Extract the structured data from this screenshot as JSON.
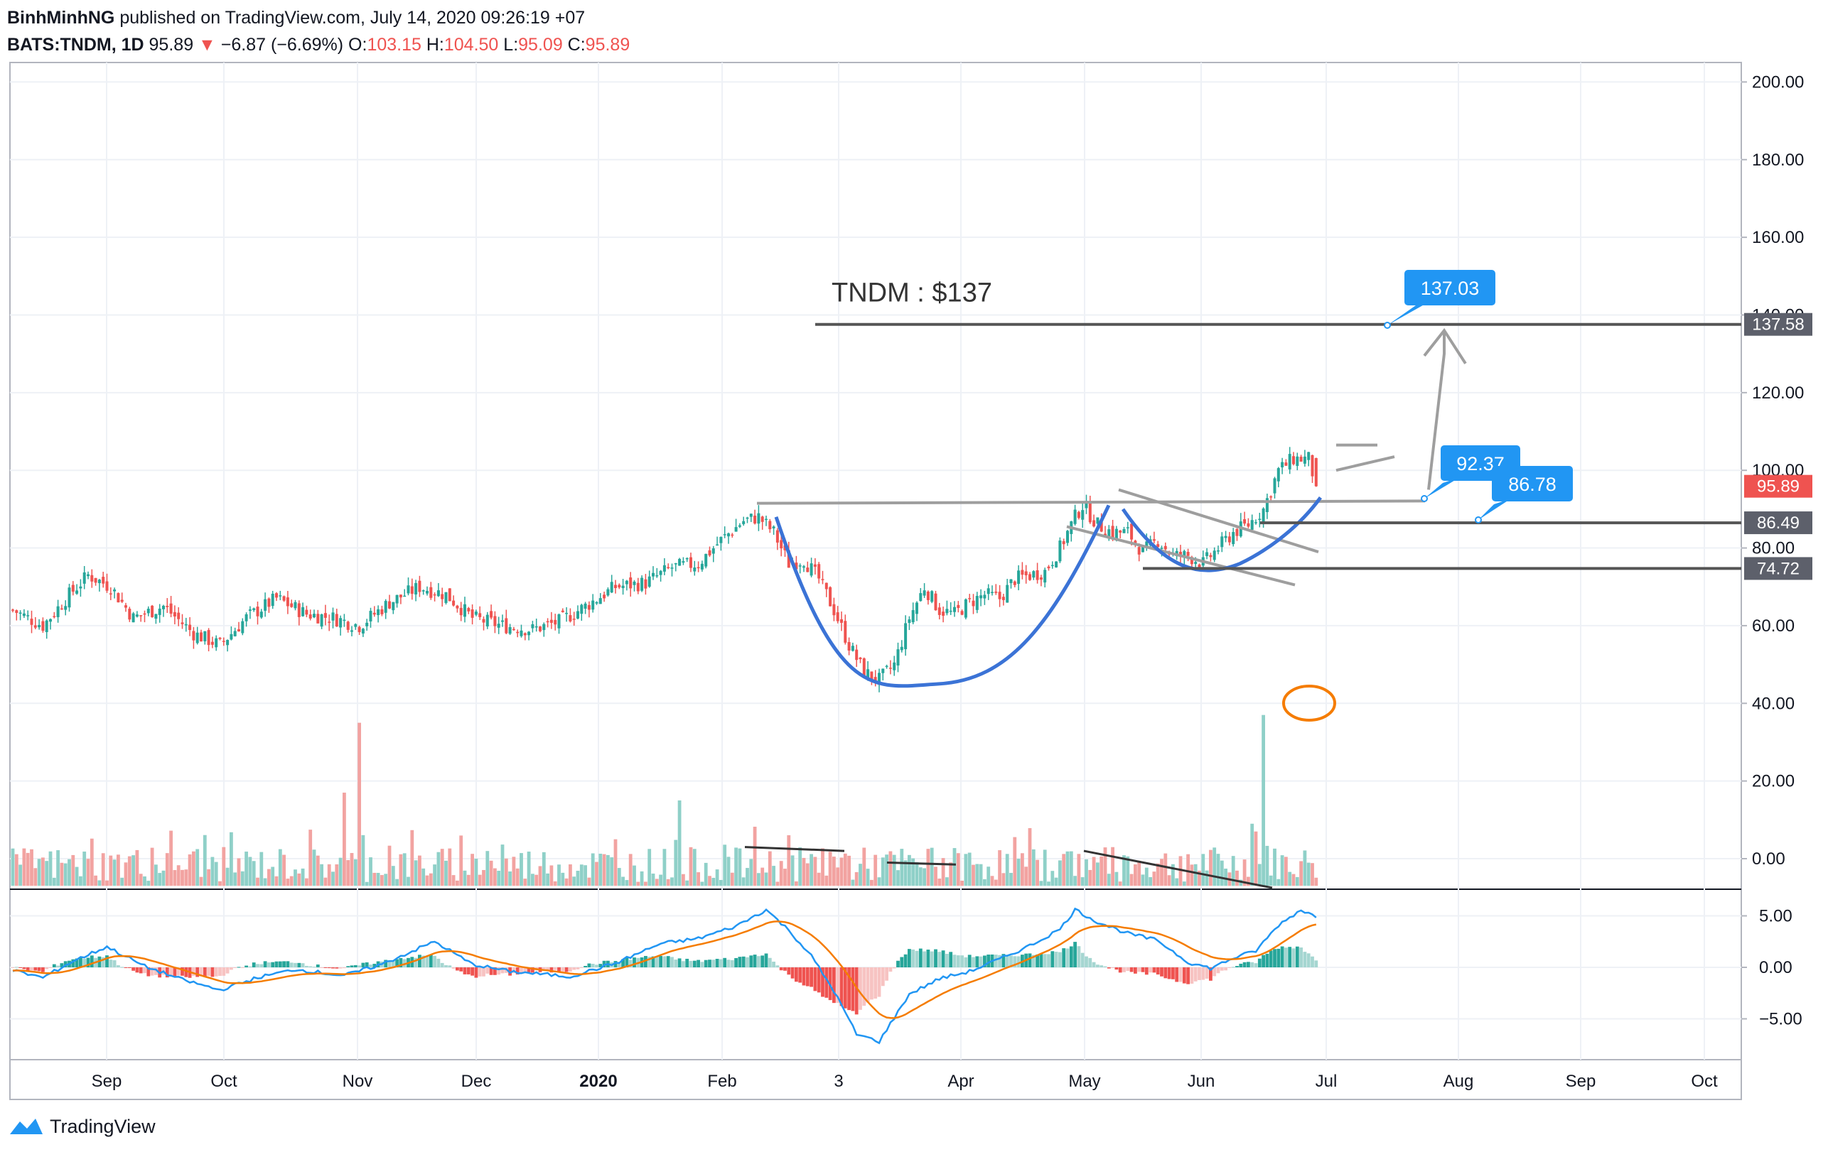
{
  "header": {
    "author": "BinhMinhNG",
    "published_text": "published on TradingView.com, July 14, 2020 09:26:19 +07",
    "symbol": "BATS:TNDM, 1D",
    "last": "95.89",
    "arrow": "▼",
    "change": "−6.87 (−6.69%)",
    "o_label": "O:",
    "o": "103.15",
    "h_label": "H:",
    "h": "104.50",
    "l_label": "L:",
    "l": "95.09",
    "c_label": "C:",
    "c": "95.89"
  },
  "footer": {
    "brand": "TradingView"
  },
  "colors": {
    "up": "#26a69a",
    "down": "#ef5350",
    "vol_up": "#8fd0c8",
    "vol_down": "#f2a3a1",
    "macd": "#2196f3",
    "signal": "#f57c00",
    "trendline": "#9e9e9e",
    "level": "#555555",
    "callout": "#2196f3",
    "cup": "#3b73d6",
    "circle": "#f57c00"
  },
  "chart_data": {
    "type": "candlestick",
    "symbol": "BATS:TNDM",
    "interval": "1D",
    "x_labels": [
      "Sep",
      "Oct",
      "Nov",
      "Dec",
      "2020",
      "Feb",
      "3",
      "Apr",
      "May",
      "Jun",
      "Jul",
      "Aug",
      "Sep",
      "Oct"
    ],
    "price_axis_ticks": [
      "200.00",
      "180.00",
      "160.00",
      "140.00",
      "120.00",
      "100.00",
      "80.00",
      "60.00",
      "40.00",
      "20.00",
      "0.00"
    ],
    "macd_axis_ticks": [
      "5.00",
      "0.00",
      "−5.00"
    ],
    "price_ylim": [
      -7,
      205
    ],
    "macd_ylim": [
      -8,
      7.2
    ],
    "price_anchors": [
      [
        0,
        64
      ],
      [
        8,
        60
      ],
      [
        15,
        68
      ],
      [
        20,
        73
      ],
      [
        26,
        70
      ],
      [
        32,
        62
      ],
      [
        40,
        65
      ],
      [
        48,
        58
      ],
      [
        55,
        55
      ],
      [
        62,
        62
      ],
      [
        70,
        67
      ],
      [
        78,
        63
      ],
      [
        85,
        62
      ],
      [
        92,
        60
      ],
      [
        100,
        66
      ],
      [
        108,
        70
      ],
      [
        115,
        68
      ],
      [
        122,
        62
      ],
      [
        130,
        60
      ],
      [
        138,
        59
      ],
      [
        145,
        61
      ],
      [
        152,
        65
      ],
      [
        160,
        70
      ],
      [
        168,
        71
      ],
      [
        175,
        75
      ],
      [
        182,
        76
      ],
      [
        188,
        82
      ],
      [
        194,
        87
      ],
      [
        198,
        88
      ],
      [
        202,
        84
      ],
      [
        206,
        76
      ],
      [
        210,
        77
      ],
      [
        214,
        72
      ],
      [
        218,
        64
      ],
      [
        222,
        55
      ],
      [
        226,
        48
      ],
      [
        230,
        46
      ],
      [
        234,
        50
      ],
      [
        238,
        62
      ],
      [
        242,
        70
      ],
      [
        246,
        64
      ],
      [
        250,
        63
      ],
      [
        254,
        66
      ],
      [
        258,
        68
      ],
      [
        262,
        67
      ],
      [
        266,
        72
      ],
      [
        270,
        73
      ],
      [
        274,
        74
      ],
      [
        278,
        80
      ],
      [
        282,
        88
      ],
      [
        284,
        91
      ],
      [
        288,
        86
      ],
      [
        292,
        84
      ],
      [
        296,
        84
      ],
      [
        300,
        79
      ],
      [
        304,
        82
      ],
      [
        308,
        78
      ],
      [
        312,
        78
      ],
      [
        316,
        76
      ],
      [
        320,
        80
      ],
      [
        324,
        84
      ],
      [
        328,
        86
      ],
      [
        332,
        90
      ],
      [
        336,
        100
      ],
      [
        340,
        103
      ],
      [
        344,
        103
      ],
      [
        346,
        95.89
      ]
    ],
    "volume": {
      "unit": "M",
      "spikes": [
        [
          92,
          42
        ],
        [
          88,
          24
        ],
        [
          177,
          22
        ],
        [
          332,
          44
        ],
        [
          330,
          14
        ],
        [
          329,
          16
        ]
      ],
      "typical_range": [
        1,
        10
      ]
    },
    "macd": {
      "anchors": [
        [
          0,
          -0.3
        ],
        [
          8,
          -1.0
        ],
        [
          16,
          0.6
        ],
        [
          25,
          2.0
        ],
        [
          35,
          0.1
        ],
        [
          45,
          -1.2
        ],
        [
          55,
          -2.2
        ],
        [
          65,
          -1.0
        ],
        [
          75,
          -0.2
        ],
        [
          88,
          -0.8
        ],
        [
          98,
          0.3
        ],
        [
          112,
          2.5
        ],
        [
          122,
          0.3
        ],
        [
          132,
          -0.4
        ],
        [
          148,
          -0.9
        ],
        [
          160,
          0.4
        ],
        [
          172,
          2.3
        ],
        [
          182,
          2.8
        ],
        [
          192,
          4.0
        ],
        [
          200,
          5.6
        ],
        [
          206,
          3.6
        ],
        [
          212,
          1.1
        ],
        [
          218,
          -2.3
        ],
        [
          224,
          -6.5
        ],
        [
          230,
          -7.2
        ],
        [
          238,
          -2.6
        ],
        [
          246,
          -1.1
        ],
        [
          254,
          -0.4
        ],
        [
          262,
          0.8
        ],
        [
          270,
          2.1
        ],
        [
          278,
          3.7
        ],
        [
          282,
          5.6
        ],
        [
          288,
          4.4
        ],
        [
          296,
          3.3
        ],
        [
          304,
          2.6
        ],
        [
          312,
          0.5
        ],
        [
          318,
          -0.1
        ],
        [
          324,
          0.9
        ],
        [
          330,
          1.6
        ],
        [
          336,
          4.1
        ],
        [
          342,
          5.6
        ],
        [
          346,
          4.9
        ]
      ]
    },
    "levels": [
      {
        "label": "137.58",
        "value": 137.58
      },
      {
        "label": "86.49",
        "value": 86.49
      },
      {
        "label": "74.72",
        "value": 74.72
      }
    ],
    "last_price": {
      "label": "95.89",
      "value": 95.89
    },
    "callouts": [
      {
        "text": "137.03",
        "value": 137.03
      },
      {
        "text": "92.37",
        "value": 92.37
      },
      {
        "text": "86.78",
        "value": 86.78
      }
    ],
    "annotation_text": "TNDM : $137",
    "patterns": [
      "cup and handle",
      "descending channel",
      "volume spike circle"
    ]
  }
}
